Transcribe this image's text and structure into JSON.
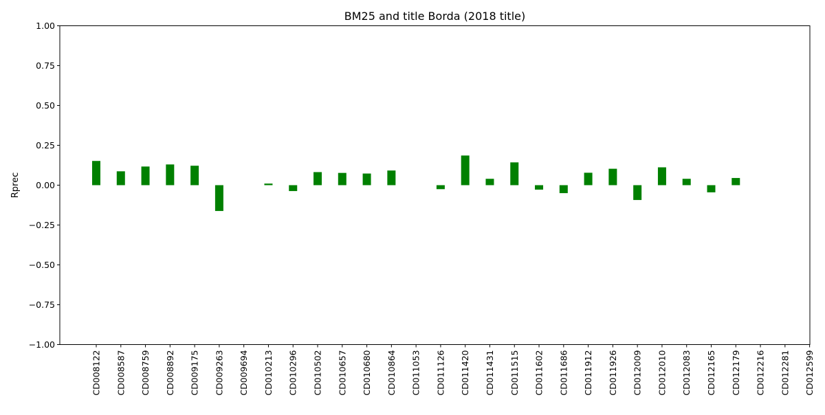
{
  "chart_data": {
    "type": "bar",
    "title": "BM25 and title Borda (2018 title)",
    "xlabel": "",
    "ylabel": "Rprec",
    "ylim": [
      -1.0,
      1.0
    ],
    "yticks": [
      -1.0,
      -0.75,
      -0.5,
      -0.25,
      0.0,
      0.25,
      0.5,
      0.75,
      1.0
    ],
    "ytick_labels": [
      "−1.00",
      "−0.75",
      "−0.50",
      "−0.25",
      "0.00",
      "0.25",
      "0.50",
      "0.75",
      "1.00"
    ],
    "grid": false,
    "bar_color": "#008000",
    "categories": [
      "CD008122",
      "CD008587",
      "CD008759",
      "CD008892",
      "CD009175",
      "CD009263",
      "CD009694",
      "CD010213",
      "CD010296",
      "CD010502",
      "CD010657",
      "CD010680",
      "CD010864",
      "CD011053",
      "CD011126",
      "CD011420",
      "CD011431",
      "CD011515",
      "CD011602",
      "CD011686",
      "CD011912",
      "CD011926",
      "CD012009",
      "CD012010",
      "CD012083",
      "CD012165",
      "CD012179",
      "CD012216",
      "CD012281",
      "CD012599"
    ],
    "values": [
      0.152,
      0.087,
      0.117,
      0.13,
      0.122,
      -0.162,
      0.0,
      0.01,
      -0.037,
      0.082,
      0.077,
      0.073,
      0.092,
      0.0,
      -0.025,
      0.186,
      0.04,
      0.143,
      -0.028,
      -0.05,
      0.078,
      0.103,
      -0.093,
      0.112,
      0.04,
      -0.045,
      0.045,
      0.0,
      0.0,
      0.0
    ]
  }
}
